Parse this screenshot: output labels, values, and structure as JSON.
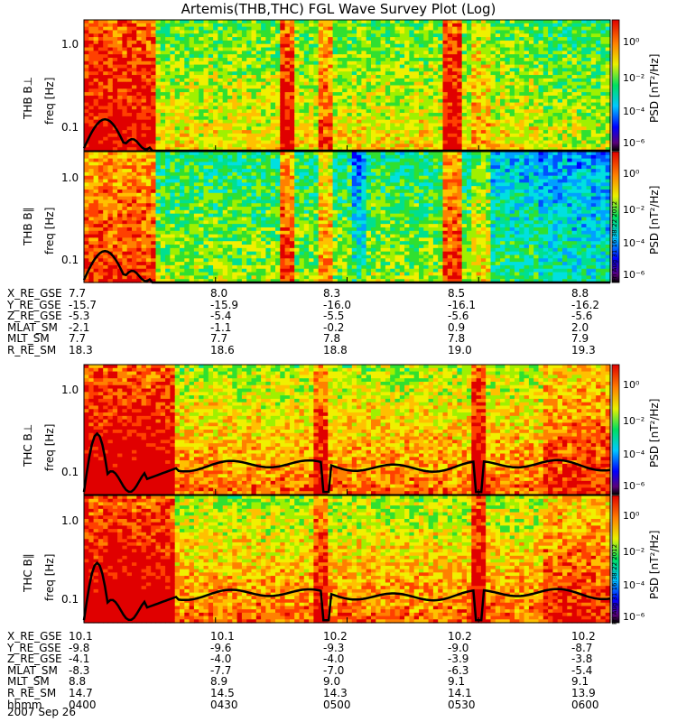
{
  "title": "Artemis(THB,THC) FGL Wave Survey Plot (Log)",
  "stamp": "Fri Aug 31 16:38:22 2012",
  "colorbar": {
    "label": "PSD [nT²/Hz]",
    "ticks": [
      "10⁰",
      "10⁻²",
      "10⁻⁴",
      "10⁻⁶"
    ]
  },
  "panels": [
    {
      "station": "THB B⊥",
      "ylabel": "freq [Hz]",
      "yticks": [
        "1.0",
        "0.1"
      ]
    },
    {
      "station": "THB B∥",
      "ylabel": "freq [Hz]",
      "yticks": [
        "1.0",
        "0.1"
      ]
    },
    {
      "station": "THC B⊥",
      "ylabel": "freq [Hz]",
      "yticks": [
        "1.0",
        "0.1"
      ]
    },
    {
      "station": "THC B∥",
      "ylabel": "freq [Hz]",
      "yticks": [
        "1.0",
        "0.1"
      ]
    }
  ],
  "ephem_top": {
    "rows": [
      {
        "name": "X_RE_GSE",
        "values": [
          "7.7",
          "8.0",
          "8.3",
          "8.5",
          "8.8"
        ]
      },
      {
        "name": "Y_RE_GSE",
        "values": [
          "-15.7",
          "-15.9",
          "-16.0",
          "-16.1",
          "-16.2"
        ]
      },
      {
        "name": "Z_RE_GSE",
        "values": [
          "-5.3",
          "-5.4",
          "-5.5",
          "-5.6",
          "-5.6"
        ]
      },
      {
        "name": "MLAT_SM",
        "values": [
          "-2.1",
          "-1.1",
          "-0.2",
          "0.9",
          "2.0"
        ]
      },
      {
        "name": "MLT_SM",
        "values": [
          "7.7",
          "7.7",
          "7.8",
          "7.8",
          "7.9"
        ]
      },
      {
        "name": "R_RE_SM",
        "values": [
          "18.3",
          "18.6",
          "18.8",
          "19.0",
          "19.3"
        ]
      }
    ]
  },
  "ephem_bottom": {
    "rows": [
      {
        "name": "X_RE_GSE",
        "values": [
          "10.1",
          "10.1",
          "10.2",
          "10.2",
          "10.2"
        ]
      },
      {
        "name": "Y_RE_GSE",
        "values": [
          "-9.8",
          "-9.6",
          "-9.3",
          "-9.0",
          "-8.7"
        ]
      },
      {
        "name": "Z_RE_GSE",
        "values": [
          "-4.1",
          "-4.0",
          "-4.0",
          "-3.9",
          "-3.8"
        ]
      },
      {
        "name": "MLAT_SM",
        "values": [
          "-8.3",
          "-7.7",
          "-7.0",
          "-6.3",
          "-5.4"
        ]
      },
      {
        "name": "MLT_SM",
        "values": [
          "8.8",
          "8.9",
          "9.0",
          "9.1",
          "9.1"
        ]
      },
      {
        "name": "R_RE_SM",
        "values": [
          "14.7",
          "14.5",
          "14.3",
          "14.1",
          "13.9"
        ]
      },
      {
        "name": "hhmm",
        "values": [
          "0400",
          "0430",
          "0500",
          "0530",
          "0600"
        ]
      }
    ]
  },
  "date": "2007 Sep 26",
  "chart_data": {
    "type": "heatmap",
    "title": "Artemis(THB,THC) FGL Wave Survey Plot (Log)",
    "xlabel": "hhmm",
    "x_ticks": [
      "0400",
      "0430",
      "0500",
      "0530",
      "0600"
    ],
    "xlim": [
      "0400",
      "0600"
    ],
    "ylabel": "freq [Hz]",
    "yscale": "log",
    "colorscale": "log",
    "color_label": "PSD [nT²/Hz]",
    "series": [
      {
        "name": "THB B⊥"
      },
      {
        "name": "THB B∥"
      },
      {
        "name": "THC B⊥"
      },
      {
        "name": "THC B∥"
      }
    ]
  }
}
